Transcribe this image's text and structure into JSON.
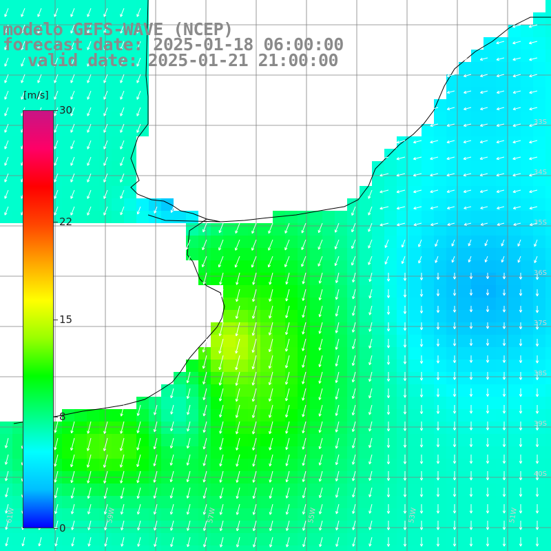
{
  "title": {
    "line1": "modelo GEFS-WAVE (NCEP)",
    "line2": "forecast date: 2025-01-18 06:00:00",
    "line3": "valid date: 2025-01-21 21:00:00"
  },
  "colorbar": {
    "unit": "[m/s]",
    "ticks": [
      "30",
      "22",
      "15",
      "8",
      "0"
    ],
    "tick_values": [
      30,
      22,
      15,
      8,
      0
    ],
    "min": 0,
    "max": 30,
    "colors": [
      "#0000ff",
      "#00bfff",
      "#00ffff",
      "#00ff7f",
      "#00ff00",
      "#9aff00",
      "#ffff00",
      "#ffa500",
      "#ff4500",
      "#ff0000",
      "#ff0066",
      "#c71585"
    ]
  },
  "map": {
    "variable": "wind speed and direction",
    "lat_labels": [
      "33S",
      "34S",
      "35S",
      "36S",
      "37S",
      "38S",
      "39S",
      "40S"
    ],
    "lon_labels": [
      "61W",
      "59W",
      "57W",
      "55W",
      "53W",
      "51W"
    ],
    "background": "#ffffff",
    "coastline_color": "#000000",
    "grid_color": "#7f7f7f",
    "arrow_color": "#ffffff"
  }
}
